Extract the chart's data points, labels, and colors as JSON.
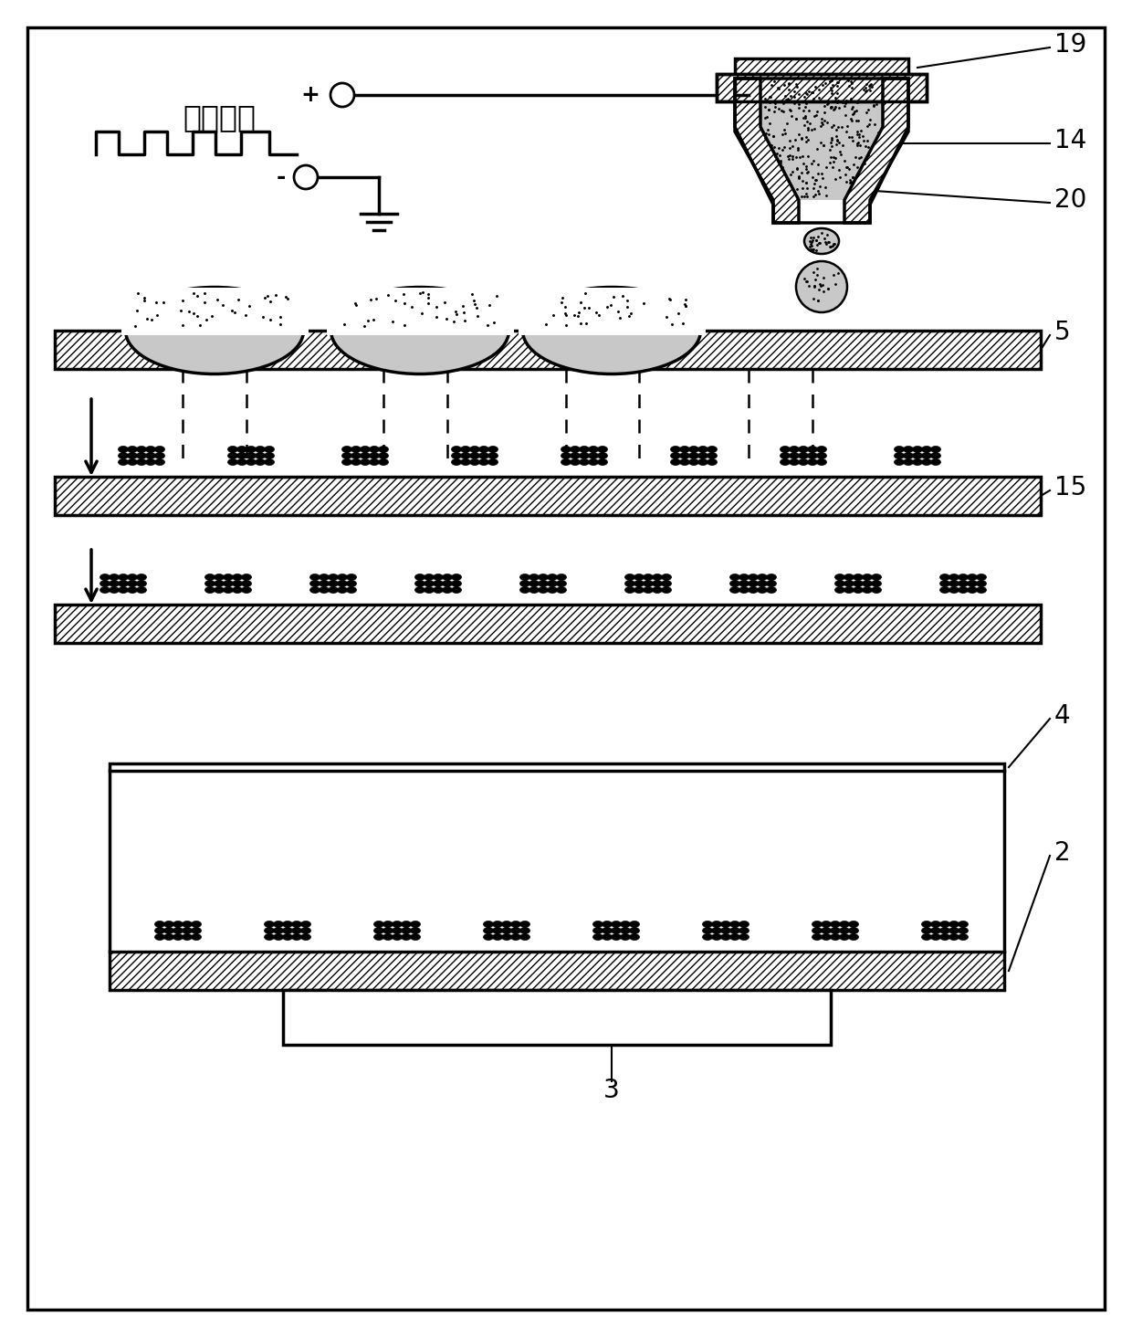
{
  "bg_color": "#ffffff",
  "black": "#000000",
  "gray_fill": "#c8c8c8",
  "dark_particle": "#111111",
  "label_19": "19",
  "label_14": "14",
  "label_20": "20",
  "label_5": "5",
  "label_15": "15",
  "label_4": "4",
  "label_2": "2",
  "label_3": "3",
  "voltage_label": "电压波形",
  "plus_label": "+",
  "minus_label": "-",
  "figw": 12.4,
  "figh": 14.64,
  "dpi": 100
}
